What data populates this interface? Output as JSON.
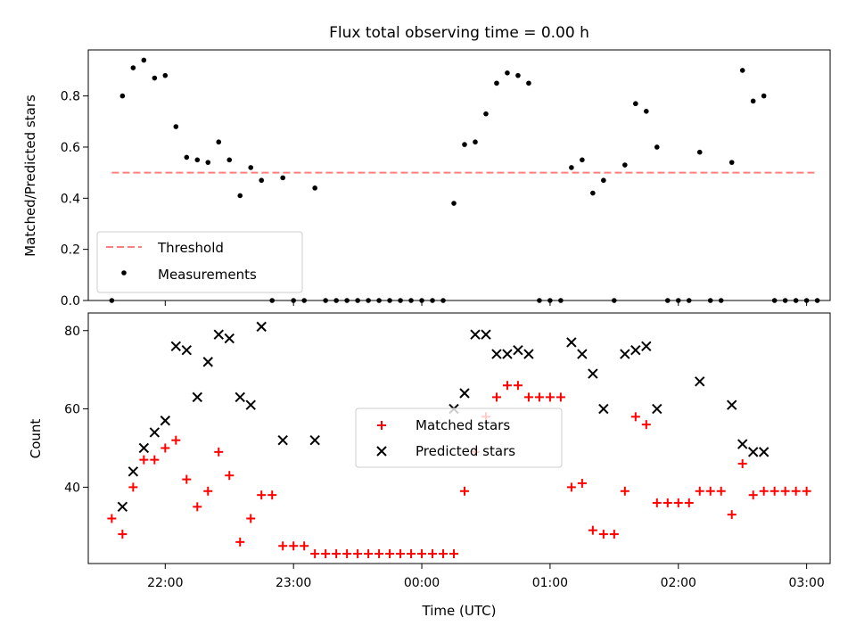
{
  "title": "Flux total observing time = 0.00 h",
  "chart_data": [
    {
      "type": "scatter",
      "ylabel": "Matched/Predicted stars",
      "ylim": [
        0,
        0.98
      ],
      "yticks": [
        "0.0",
        "0.2",
        "0.4",
        "0.6",
        "0.8"
      ],
      "threshold": {
        "name": "Threshold",
        "value": 0.5,
        "color": "#ff7f7f"
      },
      "legend": {
        "position": "lower-left"
      },
      "series": [
        {
          "name": "Measurements",
          "color": "#000000",
          "points": [
            [
              "21:35",
              0.0
            ],
            [
              "21:40",
              0.8
            ],
            [
              "21:45",
              0.91
            ],
            [
              "21:50",
              0.94
            ],
            [
              "21:55",
              0.87
            ],
            [
              "22:00",
              0.88
            ],
            [
              "22:05",
              0.68
            ],
            [
              "22:10",
              0.56
            ],
            [
              "22:15",
              0.55
            ],
            [
              "22:20",
              0.54
            ],
            [
              "22:25",
              0.62
            ],
            [
              "22:30",
              0.55
            ],
            [
              "22:35",
              0.41
            ],
            [
              "22:40",
              0.52
            ],
            [
              "22:45",
              0.47
            ],
            [
              "22:50",
              0.0
            ],
            [
              "22:55",
              0.48
            ],
            [
              "23:00",
              0.0
            ],
            [
              "23:05",
              0.0
            ],
            [
              "23:10",
              0.44
            ],
            [
              "23:15",
              0.0
            ],
            [
              "23:20",
              0.0
            ],
            [
              "23:25",
              0.0
            ],
            [
              "23:30",
              0.0
            ],
            [
              "23:35",
              0.0
            ],
            [
              "23:40",
              0.0
            ],
            [
              "23:45",
              0.0
            ],
            [
              "23:50",
              0.0
            ],
            [
              "23:55",
              0.0
            ],
            [
              "24:00",
              0.0
            ],
            [
              "24:05",
              0.0
            ],
            [
              "24:10",
              0.0
            ],
            [
              "24:15",
              0.38
            ],
            [
              "24:20",
              0.61
            ],
            [
              "24:25",
              0.62
            ],
            [
              "24:30",
              0.73
            ],
            [
              "24:35",
              0.85
            ],
            [
              "24:40",
              0.89
            ],
            [
              "24:45",
              0.88
            ],
            [
              "24:50",
              0.85
            ],
            [
              "24:55",
              0.0
            ],
            [
              "25:00",
              0.0
            ],
            [
              "25:05",
              0.0
            ],
            [
              "25:10",
              0.52
            ],
            [
              "25:15",
              0.55
            ],
            [
              "25:20",
              0.42
            ],
            [
              "25:25",
              0.47
            ],
            [
              "25:30",
              0.0
            ],
            [
              "25:35",
              0.53
            ],
            [
              "25:40",
              0.77
            ],
            [
              "25:45",
              0.74
            ],
            [
              "25:50",
              0.6
            ],
            [
              "25:55",
              0.0
            ],
            [
              "26:00",
              0.0
            ],
            [
              "26:05",
              0.0
            ],
            [
              "26:10",
              0.58
            ],
            [
              "26:15",
              0.0
            ],
            [
              "26:20",
              0.0
            ],
            [
              "26:25",
              0.54
            ],
            [
              "26:30",
              0.9
            ],
            [
              "26:35",
              0.78
            ],
            [
              "26:40",
              0.8
            ],
            [
              "26:45",
              0.0
            ],
            [
              "26:50",
              0.0
            ],
            [
              "26:55",
              0.0
            ],
            [
              "27:00",
              0.0
            ],
            [
              "27:05",
              0.0
            ]
          ]
        }
      ]
    },
    {
      "type": "scatter",
      "xlabel": "Time (UTC)",
      "ylabel": "Count",
      "ylim": [
        20.5,
        84.5
      ],
      "yticks": [
        "40",
        "60",
        "80"
      ],
      "xticks": [
        {
          "t": "22:00",
          "label": "22:00"
        },
        {
          "t": "23:00",
          "label": "23:00"
        },
        {
          "t": "24:00",
          "label": "00:00"
        },
        {
          "t": "25:00",
          "label": "01:00"
        },
        {
          "t": "26:00",
          "label": "02:00"
        },
        {
          "t": "27:00",
          "label": "03:00"
        }
      ],
      "xlim": [
        "21:24",
        "27:11"
      ],
      "legend": {
        "position": "center"
      },
      "series": [
        {
          "name": "Matched stars",
          "marker": "plus",
          "color": "#ff0000",
          "points": [
            [
              "21:35",
              32
            ],
            [
              "21:40",
              28
            ],
            [
              "21:45",
              40
            ],
            [
              "21:50",
              47
            ],
            [
              "21:55",
              47
            ],
            [
              "22:00",
              50
            ],
            [
              "22:05",
              52
            ],
            [
              "22:10",
              42
            ],
            [
              "22:15",
              35
            ],
            [
              "22:20",
              39
            ],
            [
              "22:25",
              49
            ],
            [
              "22:30",
              43
            ],
            [
              "22:35",
              26
            ],
            [
              "22:40",
              32
            ],
            [
              "22:45",
              38
            ],
            [
              "22:50",
              38
            ],
            [
              "22:55",
              25
            ],
            [
              "23:00",
              25
            ],
            [
              "23:05",
              25
            ],
            [
              "23:10",
              23
            ],
            [
              "23:15",
              23
            ],
            [
              "23:20",
              23
            ],
            [
              "23:25",
              23
            ],
            [
              "23:30",
              23
            ],
            [
              "23:35",
              23
            ],
            [
              "23:40",
              23
            ],
            [
              "23:45",
              23
            ],
            [
              "23:50",
              23
            ],
            [
              "23:55",
              23
            ],
            [
              "24:00",
              23
            ],
            [
              "24:05",
              23
            ],
            [
              "24:10",
              23
            ],
            [
              "24:15",
              23
            ],
            [
              "24:20",
              39
            ],
            [
              "24:25",
              49
            ],
            [
              "24:30",
              58
            ],
            [
              "24:35",
              63
            ],
            [
              "24:40",
              66
            ],
            [
              "24:45",
              66
            ],
            [
              "24:50",
              63
            ],
            [
              "24:55",
              63
            ],
            [
              "25:00",
              63
            ],
            [
              "25:05",
              63
            ],
            [
              "25:10",
              40
            ],
            [
              "25:15",
              41
            ],
            [
              "25:20",
              29
            ],
            [
              "25:25",
              28
            ],
            [
              "25:30",
              28
            ],
            [
              "25:35",
              39
            ],
            [
              "25:40",
              58
            ],
            [
              "25:45",
              56
            ],
            [
              "25:50",
              36
            ],
            [
              "25:55",
              36
            ],
            [
              "26:00",
              36
            ],
            [
              "26:05",
              36
            ],
            [
              "26:10",
              39
            ],
            [
              "26:15",
              39
            ],
            [
              "26:20",
              39
            ],
            [
              "26:25",
              33
            ],
            [
              "26:30",
              46
            ],
            [
              "26:35",
              38
            ],
            [
              "26:40",
              39
            ],
            [
              "26:45",
              39
            ],
            [
              "26:50",
              39
            ],
            [
              "26:55",
              39
            ],
            [
              "27:00",
              39
            ]
          ]
        },
        {
          "name": "Predicted stars",
          "marker": "x",
          "color": "#000000",
          "points": [
            [
              "21:40",
              35
            ],
            [
              "21:45",
              44
            ],
            [
              "21:50",
              50
            ],
            [
              "21:55",
              54
            ],
            [
              "22:00",
              57
            ],
            [
              "22:05",
              76
            ],
            [
              "22:10",
              75
            ],
            [
              "22:15",
              63
            ],
            [
              "22:20",
              72
            ],
            [
              "22:25",
              79
            ],
            [
              "22:30",
              78
            ],
            [
              "22:35",
              63
            ],
            [
              "22:40",
              61
            ],
            [
              "22:45",
              81
            ],
            [
              "22:55",
              52
            ],
            [
              "23:10",
              52
            ],
            [
              "24:15",
              60
            ],
            [
              "24:20",
              64
            ],
            [
              "24:25",
              79
            ],
            [
              "24:30",
              79
            ],
            [
              "24:35",
              74
            ],
            [
              "24:40",
              74
            ],
            [
              "24:45",
              75
            ],
            [
              "24:50",
              74
            ],
            [
              "25:10",
              77
            ],
            [
              "25:15",
              74
            ],
            [
              "25:20",
              69
            ],
            [
              "25:25",
              60
            ],
            [
              "25:35",
              74
            ],
            [
              "25:40",
              75
            ],
            [
              "25:45",
              76
            ],
            [
              "25:50",
              60
            ],
            [
              "26:10",
              67
            ],
            [
              "26:25",
              61
            ],
            [
              "26:30",
              51
            ],
            [
              "26:35",
              49
            ],
            [
              "26:40",
              49
            ]
          ]
        }
      ]
    }
  ]
}
